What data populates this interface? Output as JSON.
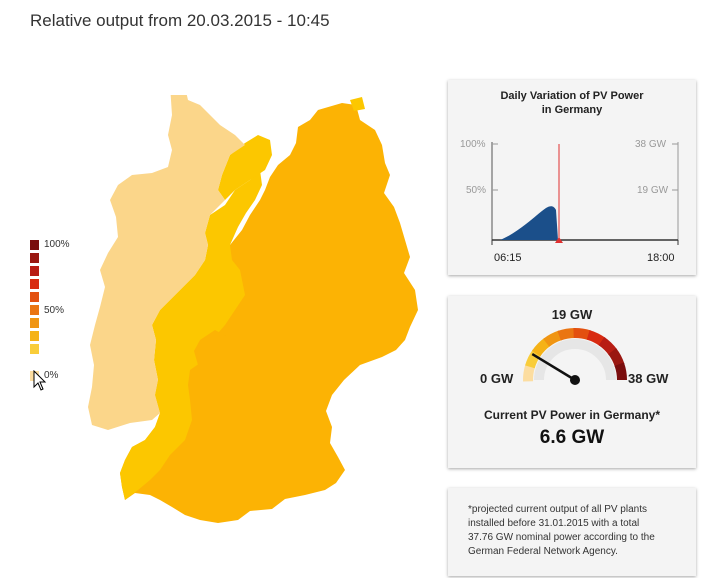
{
  "header": {
    "title": "Relative output from 20.03.2015 - 10:45"
  },
  "legend": {
    "labels": [
      "100%",
      "50%",
      "0%"
    ],
    "colors": [
      "#7a0d0d",
      "#9a1711",
      "#b81d14",
      "#d82a10",
      "#e3500f",
      "#ea7512",
      "#f09512",
      "#f5b216",
      "#f9cd3a",
      "#fcdda0"
    ]
  },
  "map_colors": {
    "north_west": "#fbd68a",
    "central": "#fcc700",
    "east_south": "#fcb304"
  },
  "daily_chart": {
    "title_line1": "Daily Variation of PV Power",
    "title_line2": "in Germany",
    "left_ticks": [
      "100%",
      "50%"
    ],
    "right_ticks": [
      "38 GW",
      "19 GW"
    ],
    "x_start": "06:15",
    "x_end": "18:00",
    "area_color": "#1b4f8a",
    "marker_color": "#e03030"
  },
  "gauge": {
    "max_label": "19 GW",
    "min_label": "0 GW",
    "end_label": "38 GW",
    "caption": "Current PV Power in Germany*",
    "value_text": "6.6 GW",
    "value": 6.6,
    "max": 38
  },
  "footnote": {
    "lines": [
      "*projected current output of all PV plants",
      "installed before 31.01.2015 with a total",
      "37.76 GW nominal power according to the",
      "German Federal Network Agency."
    ]
  }
}
